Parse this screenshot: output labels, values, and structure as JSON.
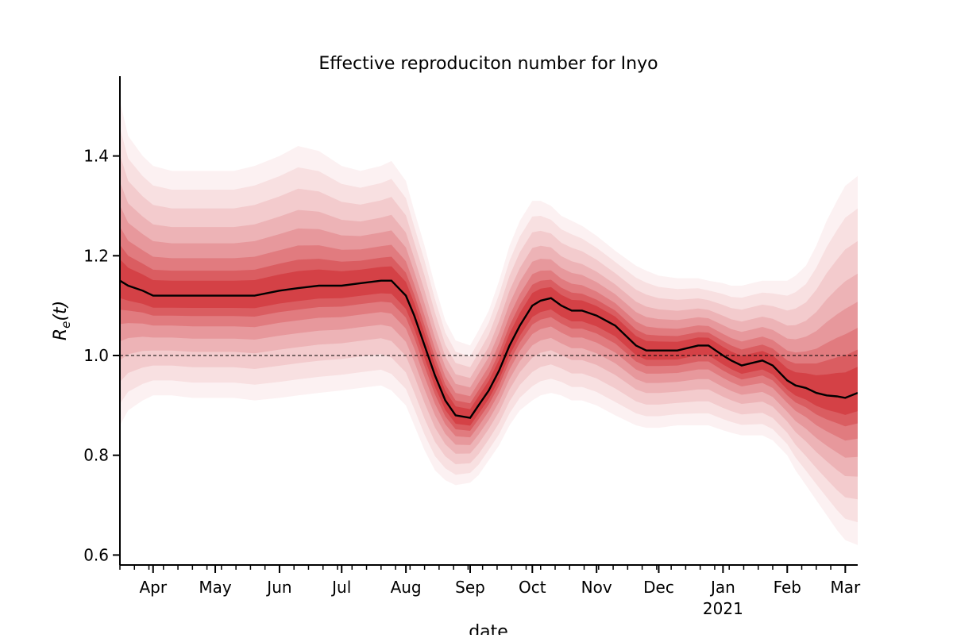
{
  "chart_data": {
    "type": "line",
    "title": "Effective reproduciton number for Inyo",
    "xlabel": "date",
    "ylabel_base": "R",
    "ylabel_sub": "e",
    "ylabel_tail": "(t)",
    "xlim": [
      "2020-03-16",
      "2021-03-07"
    ],
    "ylim": [
      0.58,
      1.56
    ],
    "yticks": [
      0.6,
      0.8,
      1.0,
      1.2,
      1.4
    ],
    "ytick_labels": [
      "0.6",
      "0.8",
      "1.0",
      "1.2",
      "1.4"
    ],
    "xticks": [
      {
        "date": "2020-04-01",
        "label": "Apr"
      },
      {
        "date": "2020-05-01",
        "label": "May"
      },
      {
        "date": "2020-06-01",
        "label": "Jun"
      },
      {
        "date": "2020-07-01",
        "label": "Jul"
      },
      {
        "date": "2020-08-01",
        "label": "Aug"
      },
      {
        "date": "2020-09-01",
        "label": "Sep"
      },
      {
        "date": "2020-10-01",
        "label": "Oct"
      },
      {
        "date": "2020-11-01",
        "label": "Nov"
      },
      {
        "date": "2020-12-01",
        "label": "Dec"
      },
      {
        "date": "2021-01-01",
        "label": "Jan",
        "sublabel": "2021"
      },
      {
        "date": "2021-02-01",
        "label": "Feb"
      },
      {
        "date": "2021-03-01",
        "label": "Mar"
      }
    ],
    "reference_line": {
      "y": 1.0,
      "style": "dashed"
    },
    "band_color": "#cb181d",
    "line_color": "#000000",
    "series": [
      {
        "x": [
          "2020-03-16",
          "2020-03-20",
          "2020-03-27",
          "2020-04-01",
          "2020-04-10",
          "2020-04-20",
          "2020-05-01",
          "2020-05-10",
          "2020-05-20",
          "2020-06-01",
          "2020-06-10",
          "2020-06-20",
          "2020-07-01",
          "2020-07-10",
          "2020-07-20",
          "2020-07-25",
          "2020-08-01",
          "2020-08-05",
          "2020-08-10",
          "2020-08-15",
          "2020-08-20",
          "2020-08-25",
          "2020-09-01",
          "2020-09-05",
          "2020-09-10",
          "2020-09-15",
          "2020-09-20",
          "2020-09-25",
          "2020-10-01",
          "2020-10-05",
          "2020-10-10",
          "2020-10-15",
          "2020-10-20",
          "2020-10-25",
          "2020-11-01",
          "2020-11-10",
          "2020-11-20",
          "2020-11-25",
          "2020-12-01",
          "2020-12-10",
          "2020-12-15",
          "2020-12-20",
          "2020-12-25",
          "2021-01-01",
          "2021-01-05",
          "2021-01-10",
          "2021-01-15",
          "2021-01-20",
          "2021-01-25",
          "2021-02-01",
          "2021-02-05",
          "2021-02-10",
          "2021-02-15",
          "2021-02-20",
          "2021-02-25",
          "2021-03-01",
          "2021-03-07"
        ],
        "median": [
          1.15,
          1.14,
          1.13,
          1.12,
          1.12,
          1.12,
          1.12,
          1.12,
          1.12,
          1.13,
          1.135,
          1.14,
          1.14,
          1.145,
          1.15,
          1.15,
          1.12,
          1.08,
          1.02,
          0.96,
          0.91,
          0.88,
          0.875,
          0.9,
          0.93,
          0.97,
          1.02,
          1.06,
          1.1,
          1.11,
          1.115,
          1.1,
          1.09,
          1.09,
          1.08,
          1.06,
          1.02,
          1.01,
          1.01,
          1.01,
          1.015,
          1.02,
          1.02,
          1.0,
          0.99,
          0.98,
          0.985,
          0.99,
          0.98,
          0.95,
          0.94,
          0.935,
          0.925,
          0.92,
          0.918,
          0.915,
          0.925
        ],
        "lower": [
          0.86,
          0.89,
          0.91,
          0.92,
          0.92,
          0.915,
          0.915,
          0.915,
          0.91,
          0.915,
          0.92,
          0.925,
          0.93,
          0.935,
          0.94,
          0.93,
          0.9,
          0.86,
          0.81,
          0.77,
          0.75,
          0.74,
          0.745,
          0.76,
          0.79,
          0.82,
          0.86,
          0.89,
          0.91,
          0.92,
          0.925,
          0.92,
          0.91,
          0.91,
          0.9,
          0.88,
          0.86,
          0.855,
          0.855,
          0.86,
          0.86,
          0.86,
          0.86,
          0.85,
          0.845,
          0.84,
          0.84,
          0.84,
          0.83,
          0.8,
          0.77,
          0.74,
          0.71,
          0.68,
          0.65,
          0.63,
          0.62
        ],
        "upper": [
          1.51,
          1.44,
          1.4,
          1.38,
          1.37,
          1.37,
          1.37,
          1.37,
          1.38,
          1.4,
          1.42,
          1.41,
          1.38,
          1.37,
          1.38,
          1.39,
          1.35,
          1.29,
          1.22,
          1.14,
          1.07,
          1.03,
          1.02,
          1.05,
          1.09,
          1.15,
          1.22,
          1.27,
          1.31,
          1.31,
          1.3,
          1.28,
          1.27,
          1.26,
          1.24,
          1.21,
          1.18,
          1.17,
          1.16,
          1.155,
          1.155,
          1.155,
          1.15,
          1.145,
          1.14,
          1.14,
          1.145,
          1.15,
          1.15,
          1.15,
          1.16,
          1.18,
          1.22,
          1.27,
          1.31,
          1.34,
          1.36
        ]
      }
    ]
  }
}
